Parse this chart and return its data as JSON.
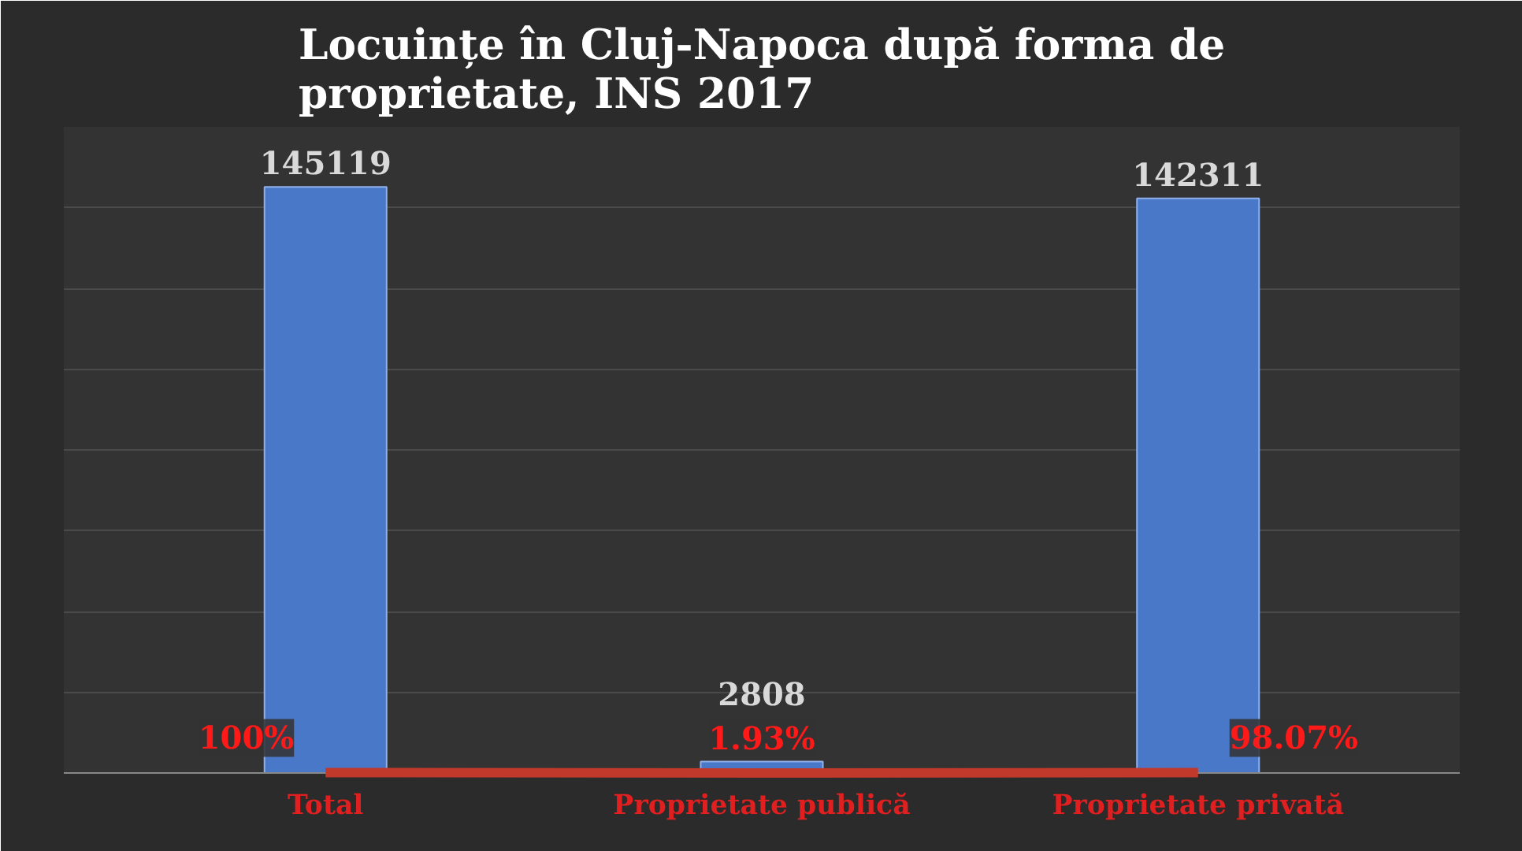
{
  "chart_data": {
    "type": "bar",
    "title": "Locuințe în Cluj-Napoca după forma de proprietate, INS 2017",
    "categories": [
      "Total",
      "Proprietate publică",
      "Proprietate privată"
    ],
    "series": [
      {
        "color": "#4a78c8",
        "values": [
          145119,
          2808,
          142311
        ],
        "value_labels": [
          "145119",
          "2808",
          "142311"
        ]
      },
      {
        "type": "line",
        "color": "#c0392b",
        "values": [
          100,
          1.93,
          98.07
        ],
        "value_labels": [
          "100%",
          "1.93%",
          "98.07%"
        ]
      }
    ],
    "ylim": [
      0,
      160000
    ],
    "yticks": [
      {
        "value": 0,
        "label": null
      },
      {
        "value": 20000,
        "label": null
      },
      {
        "value": 40000,
        "label": null
      },
      {
        "value": 60000,
        "label": null
      },
      {
        "value": 80000,
        "label": null
      },
      {
        "value": 100000,
        "label": null
      },
      {
        "value": 120000,
        "label": null
      },
      {
        "value": 140000,
        "label": null
      },
      {
        "value": 160000,
        "label": null
      }
    ],
    "tick_labels": "x",
    "grid": "y"
  }
}
